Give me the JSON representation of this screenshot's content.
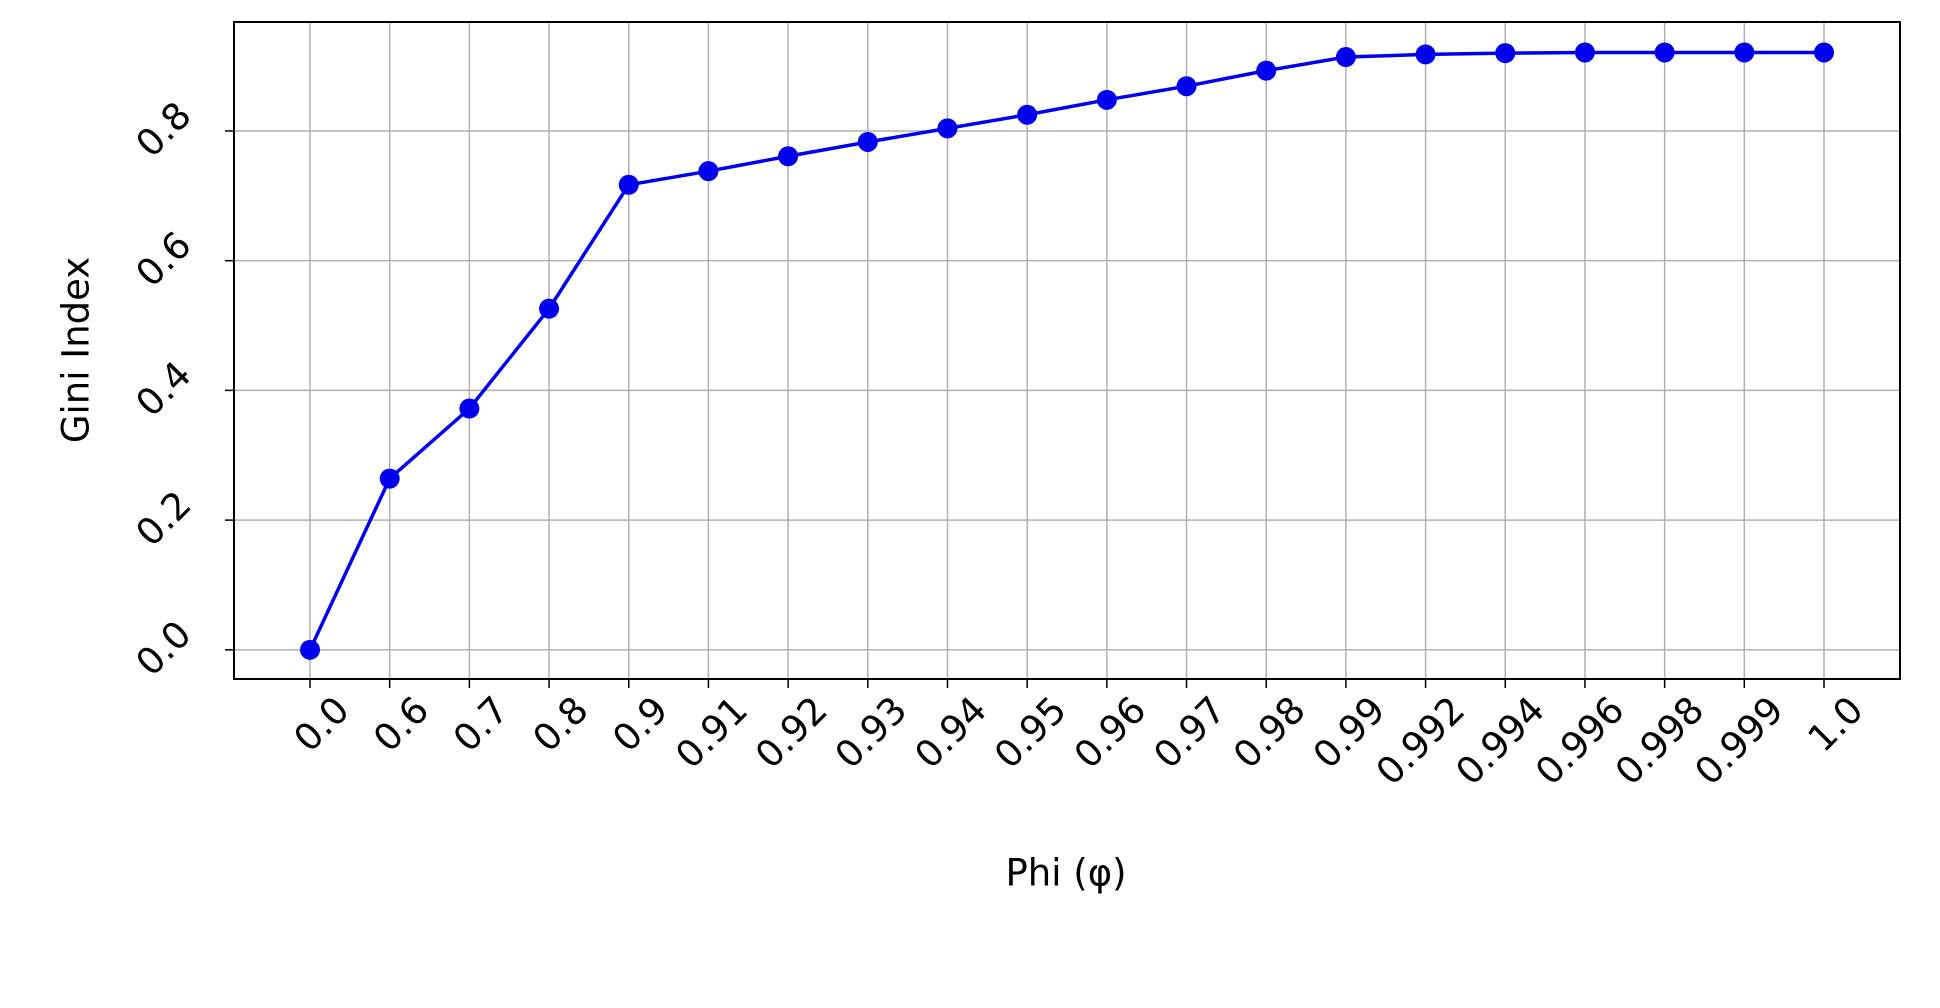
{
  "chart_data": {
    "type": "line",
    "x_label": "Phi (φ)",
    "y_label": "Gini Index",
    "categories": [
      "0.0",
      "0.6",
      "0.7",
      "0.8",
      "0.9",
      "0.91",
      "0.92",
      "0.93",
      "0.94",
      "0.95",
      "0.96",
      "0.97",
      "0.98",
      "0.99",
      "0.992",
      "0.994",
      "0.996",
      "0.998",
      "0.999",
      "1.0"
    ],
    "values": [
      0.0,
      0.264,
      0.372,
      0.526,
      0.717,
      0.738,
      0.761,
      0.783,
      0.804,
      0.825,
      0.848,
      0.869,
      0.893,
      0.914,
      0.918,
      0.92,
      0.921,
      0.921,
      0.921,
      0.921
    ],
    "color": "#0000ee",
    "ylim": [
      -0.045,
      0.968
    ],
    "yticks": [
      {
        "value": 0,
        "label": "0.0"
      },
      0.2,
      0.4,
      0.6,
      0.8
    ],
    "grid": true
  }
}
